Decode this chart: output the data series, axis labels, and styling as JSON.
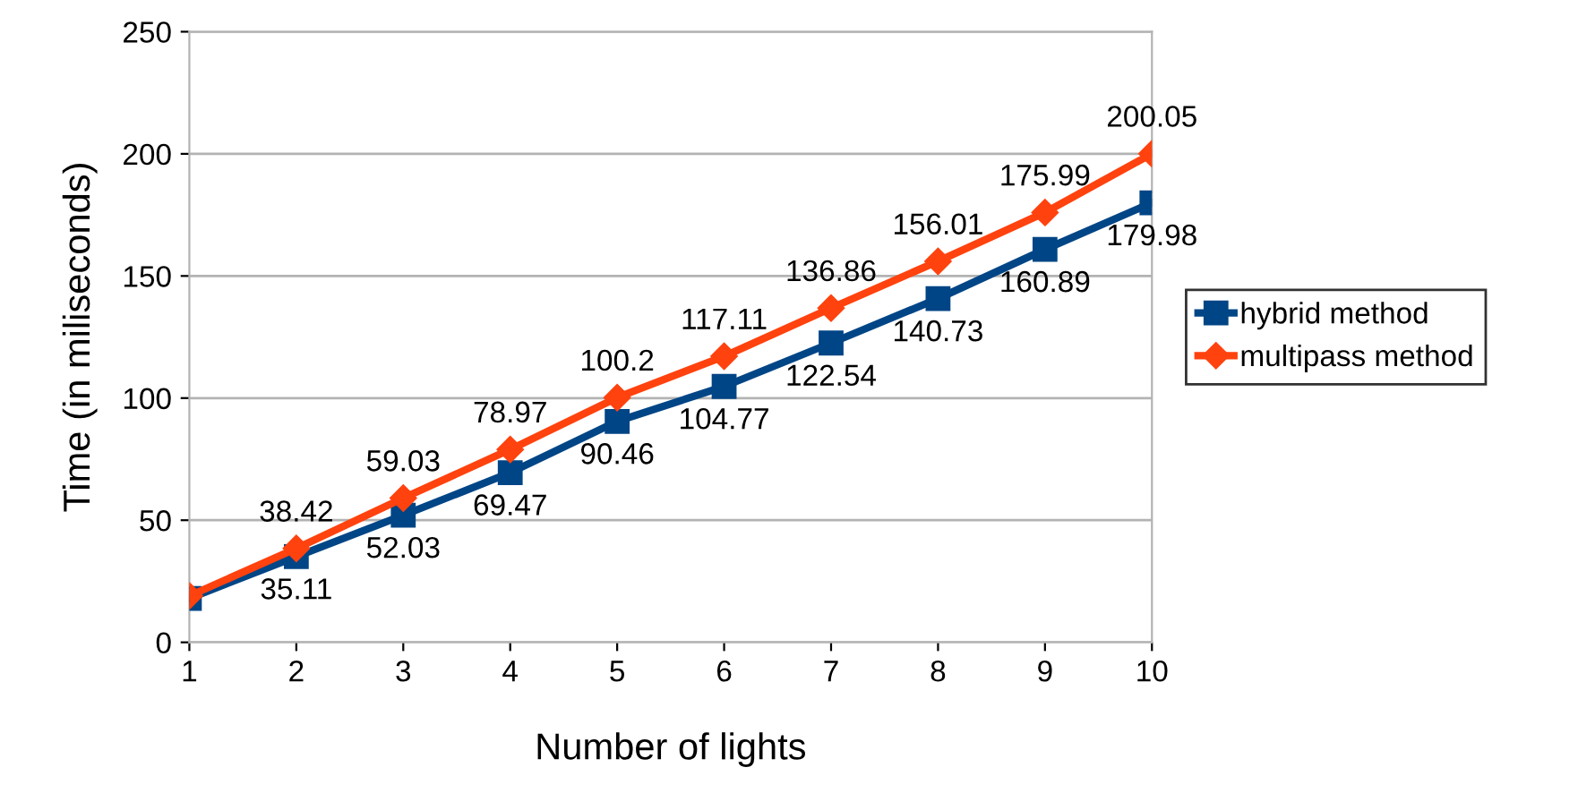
{
  "chart_data": {
    "type": "line",
    "xlabel": "Number of lights",
    "ylabel": "Time (in miliseconds)",
    "x": [
      1,
      2,
      3,
      4,
      5,
      6,
      7,
      8,
      9,
      10
    ],
    "series": [
      {
        "name": "hybrid method",
        "color": "#004586",
        "marker": "square",
        "values": [
          18,
          35.11,
          52.03,
          69.47,
          90.46,
          104.77,
          122.54,
          140.73,
          160.89,
          179.98
        ],
        "value_labels": [
          null,
          "35.11",
          "52.03",
          "69.47",
          "90.46",
          "104.77",
          "122.54",
          "140.73",
          "160.89",
          "179.98"
        ]
      },
      {
        "name": "multipass method",
        "color": "#ff420e",
        "marker": "diamond",
        "values": [
          19,
          38.42,
          59.03,
          78.97,
          100.2,
          117.11,
          136.86,
          156.01,
          175.99,
          200.05
        ],
        "value_labels": [
          null,
          "38.42",
          "59.03",
          "78.97",
          "100.2",
          "117.11",
          "136.86",
          "156.01",
          "175.99",
          "200.05"
        ]
      }
    ],
    "xlim": [
      1,
      10
    ],
    "xticks": [
      1,
      2,
      3,
      4,
      5,
      6,
      7,
      8,
      9,
      10
    ],
    "ylim": [
      0,
      250
    ],
    "yticks": [
      0,
      50,
      100,
      150,
      200,
      250
    ],
    "grid": "y",
    "legend": "right",
    "line_style": "solid"
  }
}
